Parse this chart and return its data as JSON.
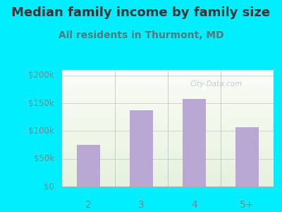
{
  "title": "Median family income by family size",
  "subtitle": "All residents in Thurmont, MD",
  "categories": [
    "2",
    "3",
    "4",
    "5+"
  ],
  "values": [
    75000,
    138000,
    158000,
    107000
  ],
  "bar_color": "#b9a8d4",
  "bg_color": "#00eeff",
  "plot_bg_color_topleft": "#e8f5e0",
  "plot_bg_color_topright": "#f0f8ff",
  "plot_bg_color_bottom": "#d0ecc8",
  "title_color": "#333333",
  "subtitle_color": "#557777",
  "tick_label_color": "#778888",
  "ytick_labels": [
    "$0",
    "$50k",
    "$100k",
    "$150k",
    "$200k"
  ],
  "ytick_values": [
    0,
    50000,
    100000,
    150000,
    200000
  ],
  "ylim": [
    0,
    210000
  ],
  "title_fontsize": 13,
  "subtitle_fontsize": 10,
  "watermark": "City-Data.com"
}
